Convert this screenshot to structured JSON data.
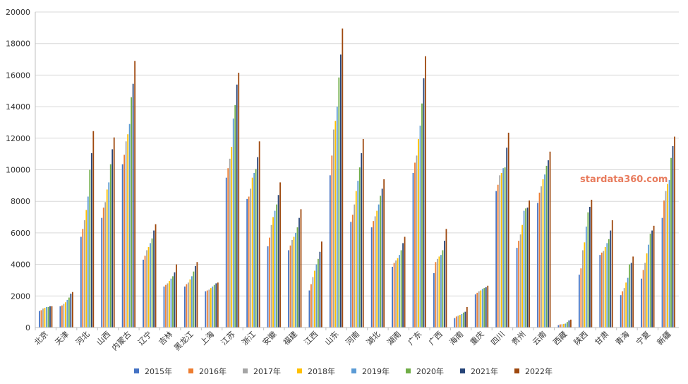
{
  "chart_data": {
    "type": "bar",
    "title": "",
    "xlabel": "",
    "ylabel": "",
    "ylim": [
      0,
      20000
    ],
    "yticks": [
      0,
      2000,
      4000,
      6000,
      8000,
      10000,
      12000,
      14000,
      16000,
      18000,
      20000
    ],
    "grid": true,
    "legend_position": "bottom",
    "watermark": "stardata360.com",
    "categories": [
      "北京",
      "天津",
      "河北",
      "山西",
      "内蒙古",
      "辽宁",
      "吉林",
      "黑龙江",
      "上海",
      "江苏",
      "浙江",
      "安徽",
      "福建",
      "江西",
      "山东",
      "河南",
      "湖北",
      "湖南",
      "广东",
      "广西",
      "海南",
      "重庆",
      "四川",
      "贵州",
      "云南",
      "西藏",
      "陕西",
      "甘肃",
      "青海",
      "宁夏",
      "新疆"
    ],
    "series": [
      {
        "name": "2015年",
        "color": "#4472c4",
        "values": [
          1050,
          1350,
          5750,
          6950,
          10350,
          4300,
          2600,
          2600,
          2300,
          9500,
          8150,
          5150,
          4900,
          2350,
          9650,
          6700,
          6350,
          3850,
          9800,
          3450,
          600,
          2100,
          8650,
          5050,
          7900,
          150,
          3350,
          4600,
          2050,
          3100,
          6950
        ]
      },
      {
        "name": "2016年",
        "color": "#ed7d31",
        "values": [
          1100,
          1400,
          6250,
          7600,
          10950,
          4550,
          2700,
          2750,
          2350,
          10100,
          8300,
          5700,
          5200,
          2750,
          10900,
          7150,
          6750,
          4100,
          10450,
          4150,
          700,
          2200,
          9050,
          5500,
          8550,
          200,
          3750,
          4750,
          2300,
          3650,
          8050
        ]
      },
      {
        "name": "2017年",
        "color": "#a5a5a5",
        "values": [
          1200,
          1500,
          6800,
          7950,
          11800,
          4900,
          2800,
          2850,
          2400,
          10700,
          8800,
          6500,
          5550,
          3200,
          12550,
          7800,
          7050,
          4250,
          10900,
          4350,
          750,
          2300,
          9650,
          5900,
          8950,
          210,
          4900,
          4850,
          2500,
          4100,
          8650
        ]
      },
      {
        "name": "2018年",
        "color": "#ffc000",
        "values": [
          1250,
          1600,
          7450,
          8750,
          12250,
          5100,
          2950,
          3050,
          2500,
          11450,
          9500,
          7000,
          5750,
          3600,
          13100,
          8650,
          7400,
          4400,
          11950,
          4500,
          800,
          2350,
          9800,
          6500,
          9400,
          230,
          5400,
          5100,
          2850,
          4700,
          9100
        ]
      },
      {
        "name": "2019年",
        "color": "#5b9bd5",
        "values": [
          1300,
          1750,
          8300,
          9200,
          12900,
          5350,
          3100,
          3250,
          2600,
          13250,
          9800,
          7400,
          6000,
          4000,
          14000,
          9300,
          7800,
          4600,
          12800,
          4600,
          850,
          2450,
          10100,
          7400,
          9700,
          250,
          6400,
          5350,
          3150,
          5250,
          9350
        ]
      },
      {
        "name": "2020年",
        "color": "#70ad47",
        "values": [
          1300,
          1900,
          10000,
          10350,
          14600,
          5650,
          3250,
          3550,
          2700,
          14100,
          10050,
          7800,
          6350,
          4350,
          15850,
          10150,
          8350,
          4900,
          14200,
          4900,
          950,
          2500,
          10150,
          7550,
          10250,
          350,
          7300,
          5600,
          4000,
          5950,
          10750
        ]
      },
      {
        "name": "2021年",
        "color": "#264478",
        "values": [
          1350,
          2150,
          11050,
          11300,
          15450,
          6150,
          3500,
          3900,
          2800,
          15400,
          10800,
          8400,
          6950,
          4800,
          17300,
          11050,
          8800,
          5350,
          15800,
          5500,
          1000,
          2550,
          11400,
          7600,
          10600,
          450,
          7650,
          6150,
          4100,
          6150,
          11500
        ]
      },
      {
        "name": "2022年",
        "color": "#9e480e",
        "values": [
          1350,
          2250,
          12450,
          12050,
          16900,
          6550,
          4000,
          4150,
          2850,
          16150,
          11800,
          9200,
          7500,
          5450,
          18950,
          11950,
          9400,
          5750,
          17200,
          6250,
          1300,
          2650,
          12350,
          8050,
          11150,
          500,
          8100,
          6800,
          4500,
          6450,
          12100
        ]
      }
    ]
  }
}
